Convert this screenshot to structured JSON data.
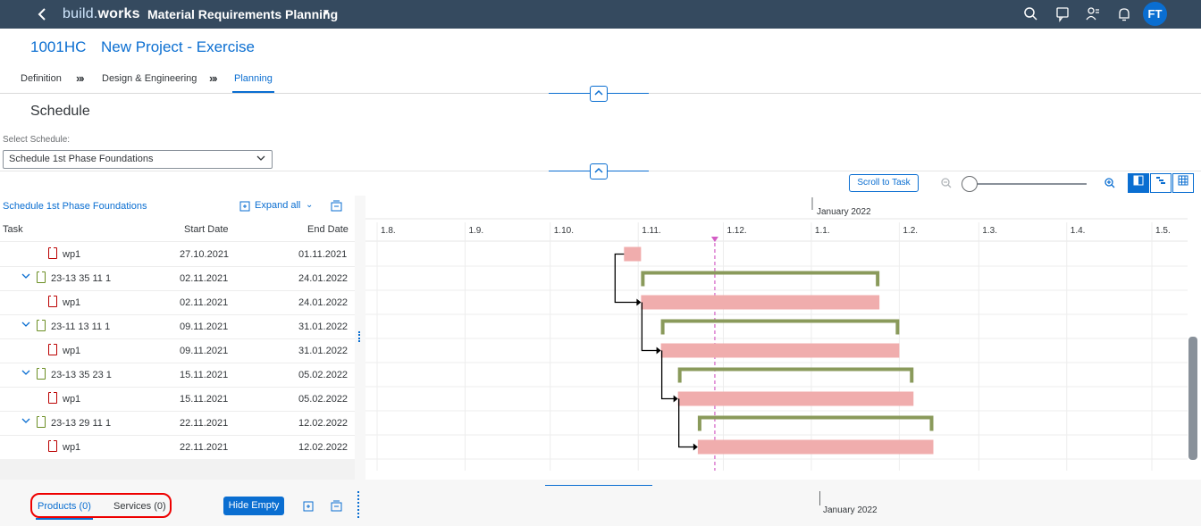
{
  "shell": {
    "brand_light": "build.",
    "brand_bold": "works",
    "app_title": "Material Requirements Planning",
    "avatar": "FT"
  },
  "header": {
    "object_id": "1001HC",
    "object_name": "New Project - Exercise"
  },
  "steps": [
    {
      "label": "Definition"
    },
    {
      "label": "Design & Engineering"
    },
    {
      "label": "Planning"
    }
  ],
  "schedule": {
    "section_title": "Schedule",
    "select_label": "Select Schedule:",
    "selected": "Schedule 1st Phase Foundations"
  },
  "toolbar": {
    "scroll_to_task": "Scroll to Task"
  },
  "table": {
    "title": "Schedule 1st Phase Foundations",
    "expand_all": "Expand all",
    "columns": [
      "Task",
      "Start Date",
      "End Date"
    ],
    "rows": [
      {
        "name": "wp1",
        "start": "27.10.2021",
        "end": "01.11.2021",
        "level": 2,
        "type": "wp"
      },
      {
        "name": "23-13 35 11 1",
        "start": "02.11.2021",
        "end": "24.01.2022",
        "level": 1,
        "type": "group"
      },
      {
        "name": "wp1",
        "start": "02.11.2021",
        "end": "24.01.2022",
        "level": 2,
        "type": "wp"
      },
      {
        "name": "23-11 13 11 1",
        "start": "09.11.2021",
        "end": "31.01.2022",
        "level": 1,
        "type": "group"
      },
      {
        "name": "wp1",
        "start": "09.11.2021",
        "end": "31.01.2022",
        "level": 2,
        "type": "wp"
      },
      {
        "name": "23-13 35 23 1",
        "start": "15.11.2021",
        "end": "05.02.2022",
        "level": 1,
        "type": "group"
      },
      {
        "name": "wp1",
        "start": "15.11.2021",
        "end": "05.02.2022",
        "level": 2,
        "type": "wp"
      },
      {
        "name": "23-13 29 11 1",
        "start": "22.11.2021",
        "end": "12.02.2022",
        "level": 1,
        "type": "group"
      },
      {
        "name": "wp1",
        "start": "22.11.2021",
        "end": "12.02.2022",
        "level": 2,
        "type": "wp"
      }
    ]
  },
  "timeline": {
    "year_label": "January 2022",
    "months": [
      "1.8.",
      "1.9.",
      "1.10.",
      "1.11.",
      "1.12.",
      "1.1.",
      "1.2.",
      "1.3.",
      "1.4.",
      "1.5."
    ]
  },
  "bottom": {
    "products_tab": "Products (0)",
    "services_tab": "Services (0)",
    "hide_empty": "Hide Empty",
    "year_label": "January 2022"
  },
  "colors": {
    "shell": "#354a5f",
    "accent": "#0a6ed1",
    "task_bar": "#f0adad",
    "summary_bar": "#8a9a5b",
    "today_line": "#d35dc4"
  }
}
